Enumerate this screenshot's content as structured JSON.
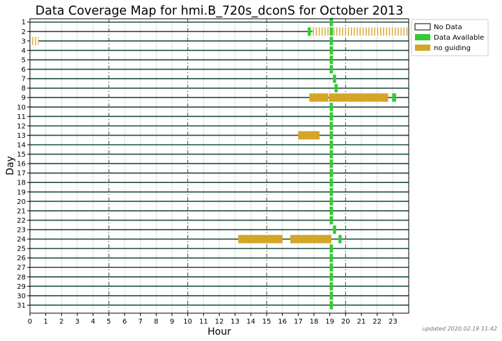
{
  "chart_data": {
    "type": "coverage-map",
    "title": "Data Coverage Map for hmi.B_720s_dconS for October 2013",
    "xlabel": "Hour",
    "ylabel": "Day",
    "xlim": [
      0,
      24
    ],
    "x_ticks": [
      "0",
      "1",
      "2",
      "3",
      "4",
      "5",
      "6",
      "7",
      "8",
      "9",
      "10",
      "11",
      "12",
      "13",
      "14",
      "15",
      "16",
      "17",
      "18",
      "19",
      "20",
      "21",
      "22",
      "23"
    ],
    "days": [
      "1",
      "2",
      "3",
      "4",
      "5",
      "6",
      "7",
      "8",
      "9",
      "10",
      "11",
      "12",
      "13",
      "14",
      "15",
      "16",
      "17",
      "18",
      "19",
      "20",
      "21",
      "22",
      "23",
      "24",
      "25",
      "26",
      "27",
      "28",
      "29",
      "30",
      "31"
    ],
    "dashed_hours": [
      5,
      10,
      15,
      20
    ],
    "legend": [
      {
        "key": "no_data",
        "label": "No Data",
        "color": "#ffffff"
      },
      {
        "key": "available",
        "label": "Data Available",
        "color": "#33cc33"
      },
      {
        "key": "no_guiding",
        "label": "no guiding",
        "color": "#d4a628"
      }
    ],
    "colors": {
      "available": "#33cc33",
      "no_guiding": "#d4a628",
      "day_line": "#1f4e3d",
      "hatch": "#d4a628"
    },
    "segments": [
      {
        "day": 1,
        "start": 19.0,
        "end": 19.2,
        "kind": "available"
      },
      {
        "day": 2,
        "start": 17.6,
        "end": 17.8,
        "kind": "available"
      },
      {
        "day": 2,
        "start": 17.9,
        "end": 19.0,
        "kind": "no_guiding_hatched"
      },
      {
        "day": 2,
        "start": 19.0,
        "end": 19.2,
        "kind": "available"
      },
      {
        "day": 2,
        "start": 19.2,
        "end": 24.0,
        "kind": "no_guiding_hatched"
      },
      {
        "day": 3,
        "start": 0.0,
        "end": 0.55,
        "kind": "no_guiding_hatched"
      },
      {
        "day": 3,
        "start": 19.0,
        "end": 19.2,
        "kind": "available"
      },
      {
        "day": 4,
        "start": 19.0,
        "end": 19.2,
        "kind": "available"
      },
      {
        "day": 5,
        "start": 19.0,
        "end": 19.2,
        "kind": "available"
      },
      {
        "day": 6,
        "start": 19.0,
        "end": 19.2,
        "kind": "available"
      },
      {
        "day": 7,
        "start": 19.2,
        "end": 19.4,
        "kind": "available"
      },
      {
        "day": 8,
        "start": 19.3,
        "end": 19.5,
        "kind": "available"
      },
      {
        "day": 9,
        "start": 17.7,
        "end": 18.9,
        "kind": "no_guiding"
      },
      {
        "day": 9,
        "start": 18.95,
        "end": 22.7,
        "kind": "no_guiding"
      },
      {
        "day": 9,
        "start": 22.95,
        "end": 23.2,
        "kind": "available"
      },
      {
        "day": 10,
        "start": 19.0,
        "end": 19.2,
        "kind": "available"
      },
      {
        "day": 11,
        "start": 19.0,
        "end": 19.2,
        "kind": "available"
      },
      {
        "day": 12,
        "start": 19.0,
        "end": 19.2,
        "kind": "available"
      },
      {
        "day": 13,
        "start": 17.0,
        "end": 18.0,
        "kind": "no_guiding"
      },
      {
        "day": 13,
        "start": 18.0,
        "end": 18.35,
        "kind": "no_guiding"
      },
      {
        "day": 13,
        "start": 19.0,
        "end": 19.2,
        "kind": "available"
      },
      {
        "day": 14,
        "start": 19.0,
        "end": 19.2,
        "kind": "available"
      },
      {
        "day": 15,
        "start": 19.0,
        "end": 19.2,
        "kind": "available"
      },
      {
        "day": 16,
        "start": 19.0,
        "end": 19.2,
        "kind": "available"
      },
      {
        "day": 17,
        "start": 19.0,
        "end": 19.2,
        "kind": "available"
      },
      {
        "day": 18,
        "start": 19.0,
        "end": 19.2,
        "kind": "available"
      },
      {
        "day": 19,
        "start": 19.0,
        "end": 19.2,
        "kind": "available"
      },
      {
        "day": 20,
        "start": 19.0,
        "end": 19.2,
        "kind": "available"
      },
      {
        "day": 21,
        "start": 19.0,
        "end": 19.2,
        "kind": "available"
      },
      {
        "day": 22,
        "start": 19.0,
        "end": 19.2,
        "kind": "available"
      },
      {
        "day": 23,
        "start": 19.2,
        "end": 19.4,
        "kind": "available"
      },
      {
        "day": 24,
        "start": 13.2,
        "end": 16.0,
        "kind": "no_guiding"
      },
      {
        "day": 24,
        "start": 16.5,
        "end": 19.1,
        "kind": "no_guiding"
      },
      {
        "day": 24,
        "start": 19.55,
        "end": 19.75,
        "kind": "available"
      },
      {
        "day": 25,
        "start": 19.0,
        "end": 19.2,
        "kind": "available"
      },
      {
        "day": 26,
        "start": 19.0,
        "end": 19.2,
        "kind": "available"
      },
      {
        "day": 27,
        "start": 19.0,
        "end": 19.2,
        "kind": "available"
      },
      {
        "day": 28,
        "start": 19.0,
        "end": 19.2,
        "kind": "available"
      },
      {
        "day": 29,
        "start": 19.0,
        "end": 19.2,
        "kind": "available"
      },
      {
        "day": 30,
        "start": 19.0,
        "end": 19.2,
        "kind": "available"
      },
      {
        "day": 31,
        "start": 19.0,
        "end": 19.2,
        "kind": "available"
      }
    ]
  },
  "footer": "updated 2020.02.19 11:42"
}
